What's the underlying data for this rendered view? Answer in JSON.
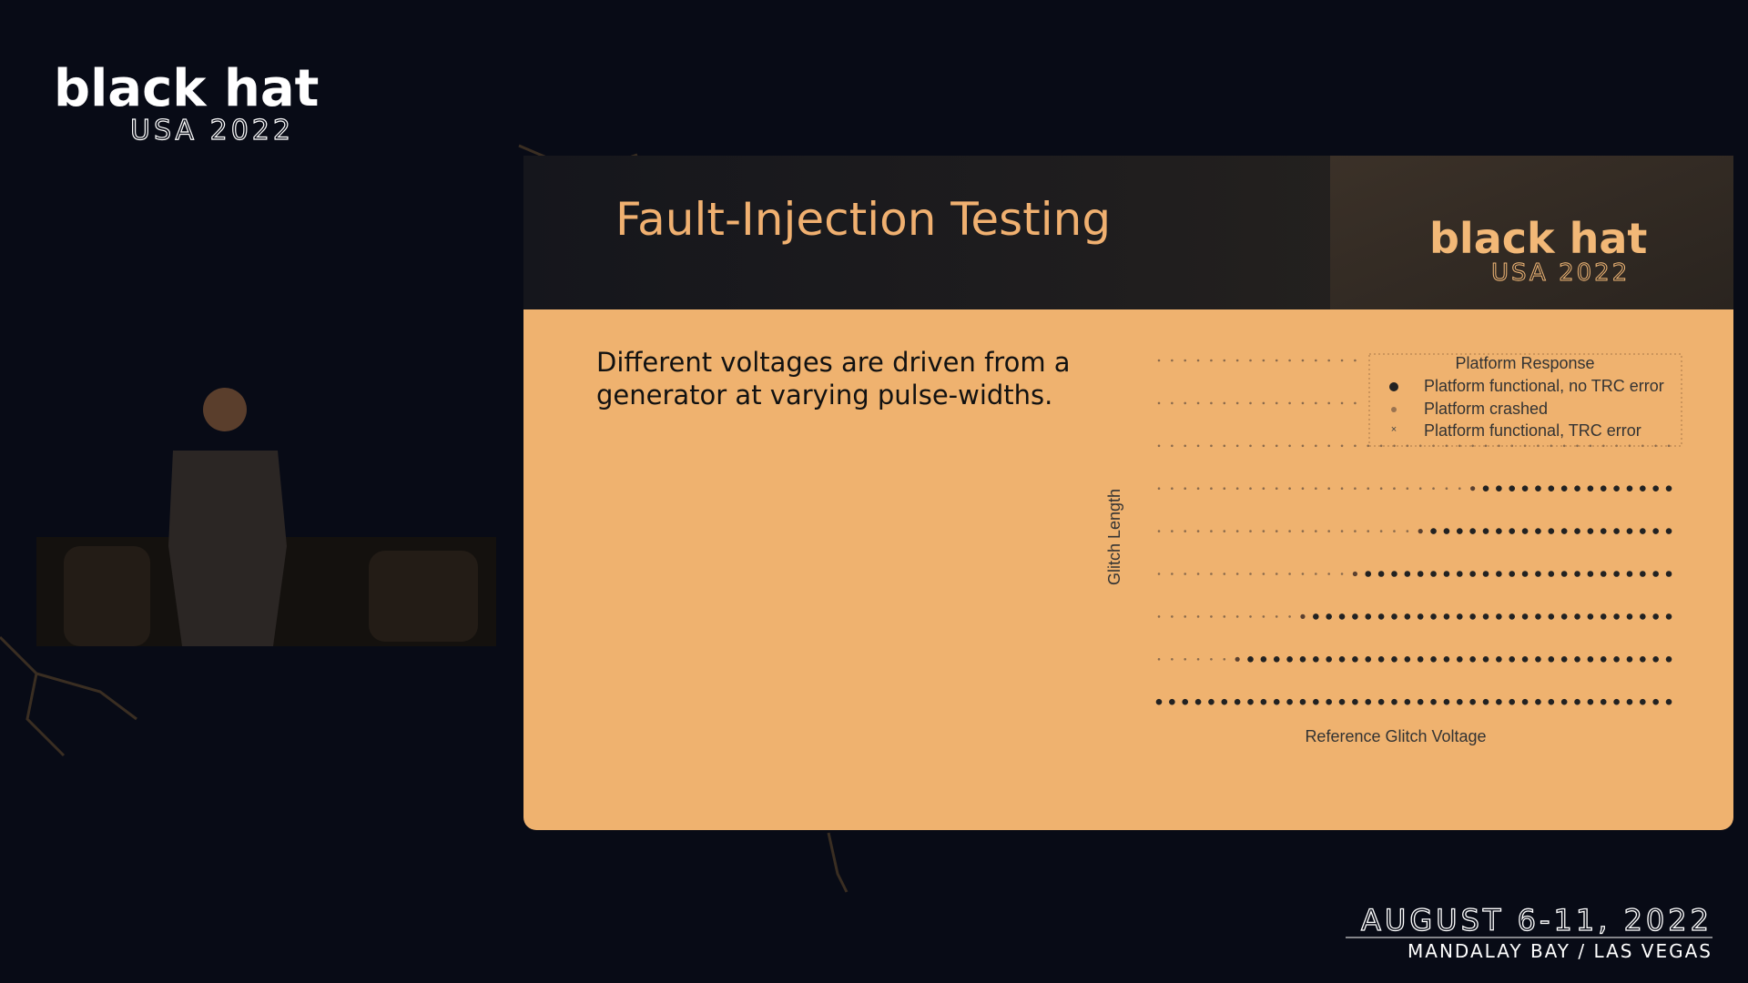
{
  "branding": {
    "logo": "black hat",
    "edition": "USA 2022",
    "dates": "AUGUST 6-11, 2022",
    "venue": "MANDALAY BAY / LAS VEGAS"
  },
  "slide": {
    "title": "Fault-Injection Testing",
    "logo": "black hat",
    "edition": "USA 2022",
    "body": [
      "Different voltages are driven from a",
      "generator at varying pulse-widths."
    ],
    "chart": {
      "y_label": "Glitch Length",
      "x_label": "Reference Glitch Voltage",
      "legend": {
        "title": "Platform Response",
        "entries": [
          "Platform functional, no TRC error",
          "Platform crashed",
          "Platform functional, TRC error"
        ]
      }
    }
  }
}
